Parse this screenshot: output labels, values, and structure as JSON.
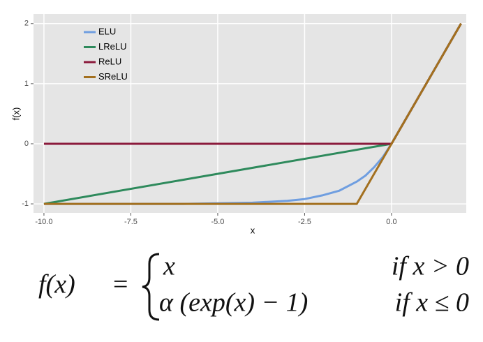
{
  "chart_data": {
    "type": "line",
    "x_label": "x",
    "y_label": "f(x)",
    "xlim": [
      -10.3,
      2.15
    ],
    "ylim": [
      -1.15,
      2.16
    ],
    "xticks": [
      {
        "value": -10,
        "label": "-10.0"
      },
      {
        "value": -7.5,
        "label": "-7.5"
      },
      {
        "value": -5,
        "label": "-5.0"
      },
      {
        "value": -2.5,
        "label": "-2.5"
      },
      {
        "value": 0,
        "label": "0.0"
      }
    ],
    "yticks": [
      -1,
      0,
      1,
      2
    ],
    "grid": true,
    "legend": "top-left",
    "series": [
      {
        "name": "ELU",
        "color": "#6f9ee0",
        "x": [
          -10,
          -8,
          -6,
          -5,
          -4,
          -3,
          -2.5,
          -2,
          -1.5,
          -1,
          -0.75,
          -0.5,
          -0.25,
          0,
          2
        ],
        "values": [
          -1,
          -1,
          -1,
          -0.99,
          -0.98,
          -0.95,
          -0.92,
          -0.86,
          -0.78,
          -0.63,
          -0.53,
          -0.39,
          -0.22,
          0,
          2
        ]
      },
      {
        "name": "LReLU",
        "color": "#2e8a5c",
        "x": [
          -10,
          0,
          2
        ],
        "values": [
          -1,
          0,
          2
        ]
      },
      {
        "name": "ReLU",
        "color": "#8b1a3c",
        "x": [
          -10,
          0,
          2
        ],
        "values": [
          0,
          0,
          2
        ]
      },
      {
        "name": "SReLU",
        "color": "#a3701f",
        "x": [
          -10,
          -1,
          0,
          2
        ],
        "values": [
          -1,
          -1,
          0,
          2
        ]
      }
    ]
  },
  "formula": {
    "lhs": "f(x)",
    "equals": "=",
    "cases": [
      {
        "expr": "x",
        "cond": "if x > 0"
      },
      {
        "expr": "α (exp(x) − 1)",
        "cond": "if x ≤ 0"
      }
    ]
  }
}
